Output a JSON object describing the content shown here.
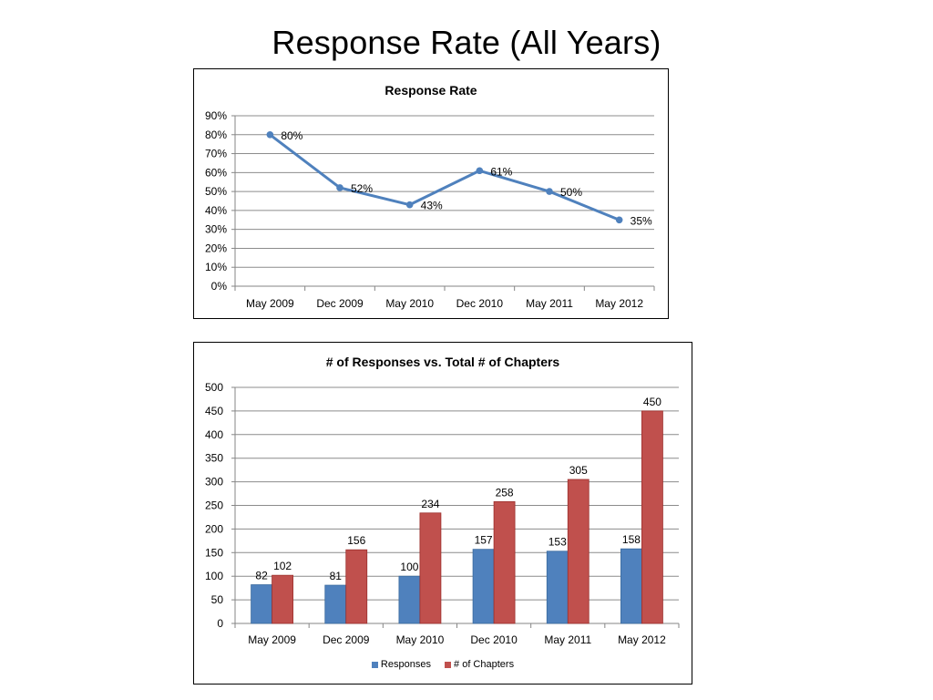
{
  "slide": {
    "title": "Response Rate (All Years)"
  },
  "chart_data": [
    {
      "type": "line",
      "title": "Response Rate",
      "categories": [
        "May 2009",
        "Dec 2009",
        "May 2010",
        "Dec 2010",
        "May 2011",
        "May 2012"
      ],
      "series": [
        {
          "values": [
            80,
            52,
            43,
            61,
            50,
            35
          ],
          "labels": [
            "80%",
            "52%",
            "43%",
            "61%",
            "50%",
            "35%"
          ],
          "color": "#4f81bd"
        }
      ],
      "yticks": [
        "0%",
        "10%",
        "20%",
        "30%",
        "40%",
        "50%",
        "60%",
        "70%",
        "80%",
        "90%"
      ],
      "ylim": [
        0,
        90
      ],
      "grid": true,
      "legend": "none"
    },
    {
      "type": "bar",
      "title": "# of Responses vs. Total # of Chapters",
      "categories": [
        "May 2009",
        "Dec 2009",
        "May 2010",
        "Dec 2010",
        "May 2011",
        "May 2012"
      ],
      "series": [
        {
          "name": "Responses",
          "values": [
            82,
            81,
            100,
            157,
            153,
            158
          ],
          "color": "#4f81bd"
        },
        {
          "name": "# of Chapters",
          "values": [
            102,
            156,
            234,
            258,
            305,
            450
          ],
          "color": "#c0504d"
        }
      ],
      "yticks": [
        "0",
        "50",
        "100",
        "150",
        "200",
        "250",
        "300",
        "350",
        "400",
        "450",
        "500"
      ],
      "ylim": [
        0,
        500
      ],
      "grid": true,
      "legend": "bottom"
    }
  ]
}
